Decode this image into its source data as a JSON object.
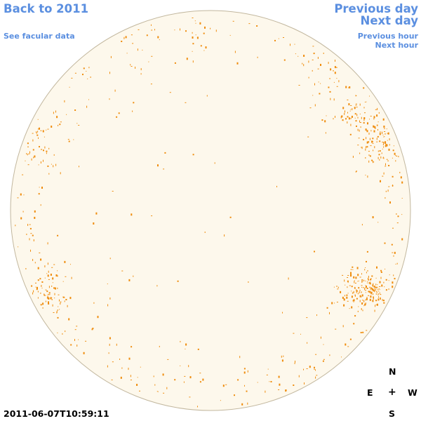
{
  "nav": {
    "back": "Back to 2011",
    "facular": "See facular data",
    "prev_day": "Previous day",
    "next_day": "Next day",
    "prev_hour": "Previous hour",
    "next_hour": "Next hour"
  },
  "timestamp": "2011-06-07T10:59:11",
  "compass": {
    "n": "N",
    "e": "E",
    "center": "+",
    "w": "W",
    "s": "S"
  },
  "colors": {
    "disk_fill": "#fdf8ec",
    "disk_border": "#c2b79e",
    "facula": "#ef8c0c",
    "link": "#5b8fe0"
  },
  "icons": {
    "compass_center": "plus-icon"
  }
}
